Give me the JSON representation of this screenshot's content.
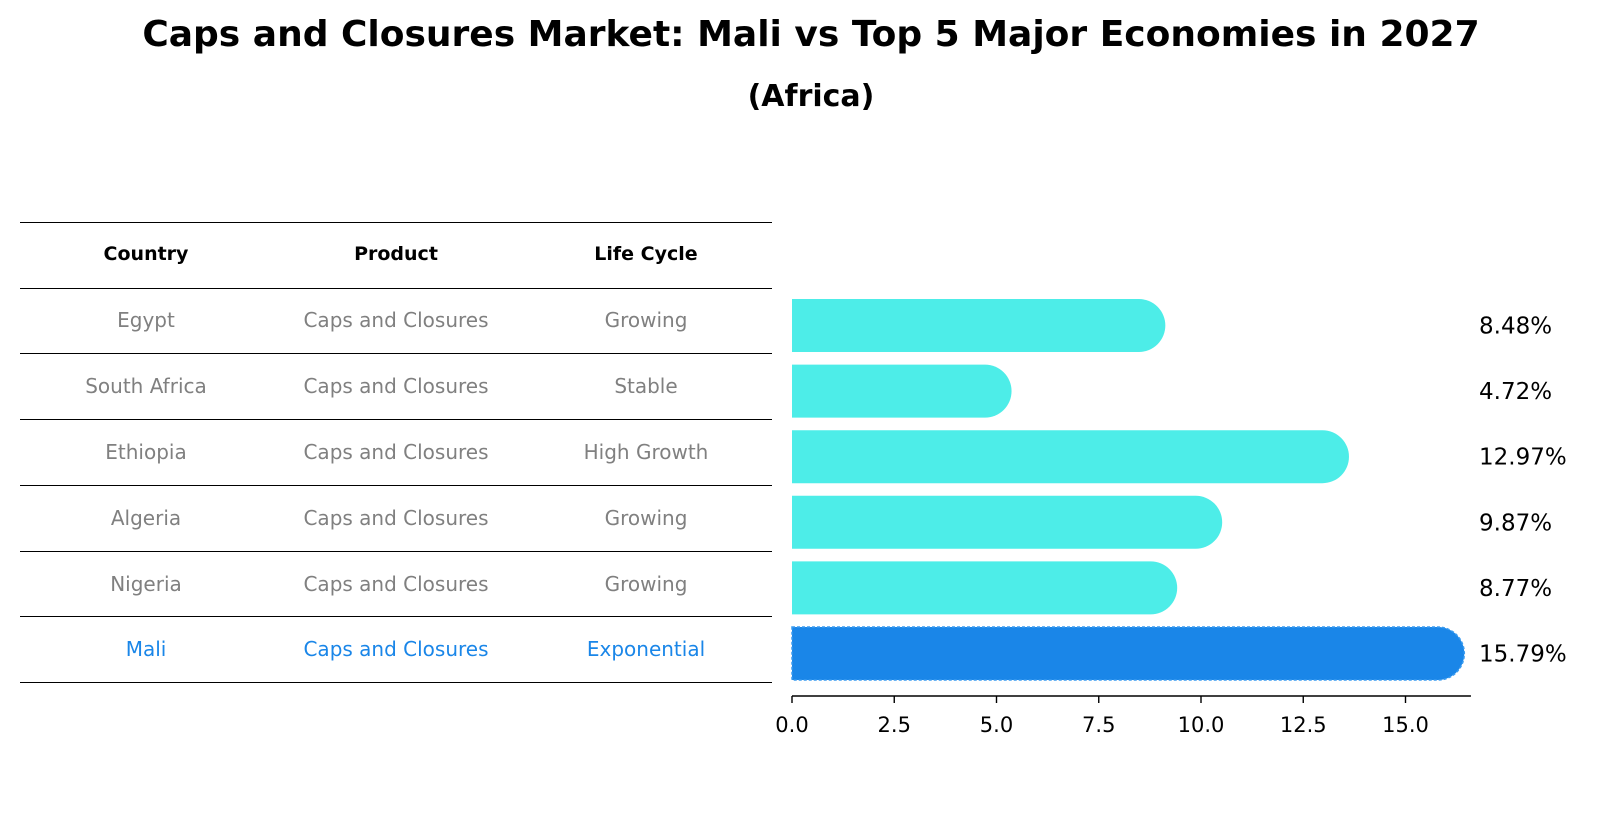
{
  "title": "Caps and Closures Market: Mali vs Top 5 Major Economies in 2027",
  "subtitle": "(Africa)",
  "table": {
    "headers": [
      "Country",
      "Product",
      "Life Cycle"
    ],
    "rows": [
      {
        "country": "Egypt",
        "product": "Caps and Closures",
        "life_cycle": "Growing"
      },
      {
        "country": "South Africa",
        "product": "Caps and Closures",
        "life_cycle": "Stable"
      },
      {
        "country": "Ethiopia",
        "product": "Caps and Closures",
        "life_cycle": "High Growth"
      },
      {
        "country": "Algeria",
        "product": "Caps and Closures",
        "life_cycle": "Growing"
      },
      {
        "country": "Nigeria",
        "product": "Caps and Closures",
        "life_cycle": "Growing"
      },
      {
        "country": "Mali",
        "product": "Caps and Closures",
        "life_cycle": "Exponential"
      }
    ]
  },
  "colors": {
    "bar": "#4dede8",
    "highlight": "#1a86e8",
    "row_text": "#808080"
  },
  "chart_data": {
    "type": "bar",
    "orientation": "horizontal",
    "categories": [
      "Egypt",
      "South Africa",
      "Ethiopia",
      "Algeria",
      "Nigeria",
      "Mali"
    ],
    "values": [
      8.48,
      4.72,
      12.97,
      9.87,
      8.77,
      15.79
    ],
    "value_labels": [
      "8.48%",
      "4.72%",
      "12.97%",
      "9.87%",
      "8.77%",
      "15.79%"
    ],
    "highlight": "Mali",
    "xlim": [
      0,
      16.6
    ],
    "xticks": [
      0.0,
      2.5,
      5.0,
      7.5,
      10.0,
      12.5,
      15.0
    ],
    "xtick_labels": [
      "0.0",
      "2.5",
      "5.0",
      "7.5",
      "10.0",
      "12.5",
      "15.0"
    ],
    "grid": false
  }
}
